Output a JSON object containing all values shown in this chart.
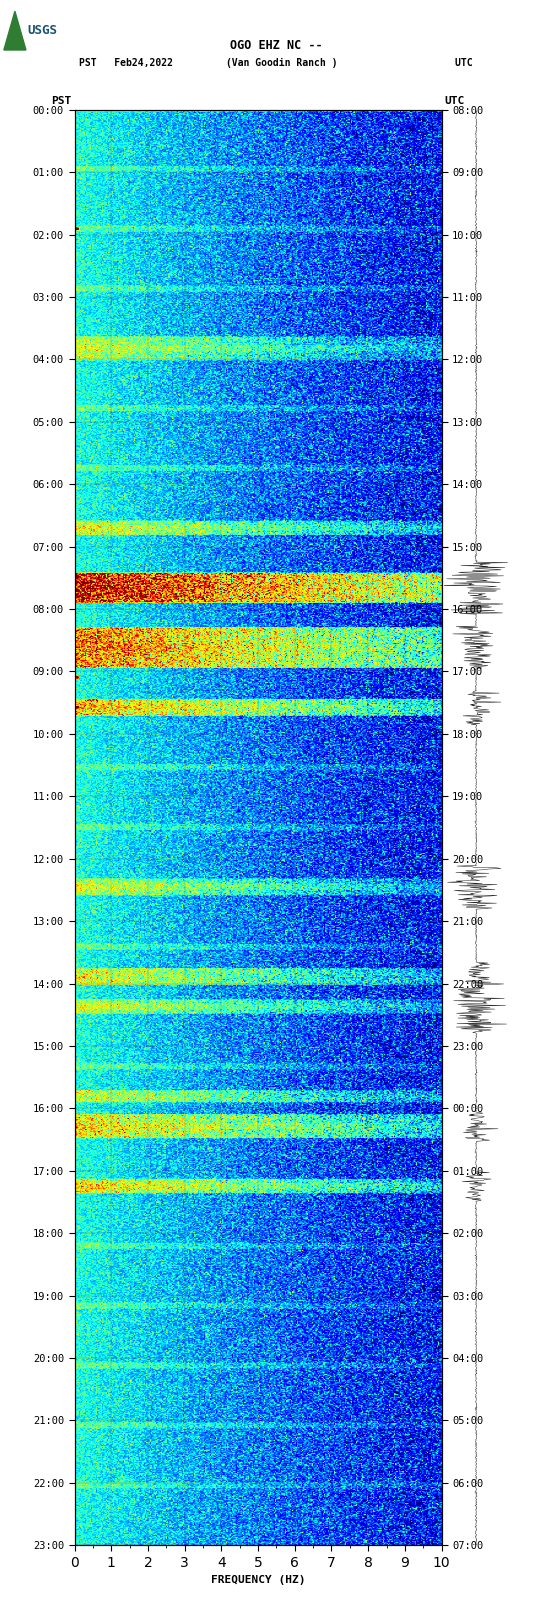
{
  "title_line1": "OGO EHZ NC --",
  "title_line2": "PST   Feb24,2022         (Van Goodin Ranch )                    UTC",
  "xlabel": "FREQUENCY (HZ)",
  "freq_min": 0,
  "freq_max": 10,
  "pst_ticks": [
    "00:00",
    "01:00",
    "02:00",
    "03:00",
    "04:00",
    "05:00",
    "06:00",
    "07:00",
    "08:00",
    "09:00",
    "10:00",
    "11:00",
    "12:00",
    "13:00",
    "14:00",
    "15:00",
    "16:00",
    "17:00",
    "18:00",
    "19:00",
    "20:00",
    "21:00",
    "22:00",
    "23:00"
  ],
  "utc_ticks": [
    "08:00",
    "09:00",
    "10:00",
    "11:00",
    "12:00",
    "13:00",
    "14:00",
    "15:00",
    "16:00",
    "17:00",
    "18:00",
    "19:00",
    "20:00",
    "21:00",
    "22:00",
    "23:00",
    "00:00",
    "01:00",
    "02:00",
    "03:00",
    "04:00",
    "05:00",
    "06:00",
    "07:00"
  ],
  "colormap": "jet",
  "fig_width": 5.52,
  "fig_height": 16.13,
  "dpi": 100
}
